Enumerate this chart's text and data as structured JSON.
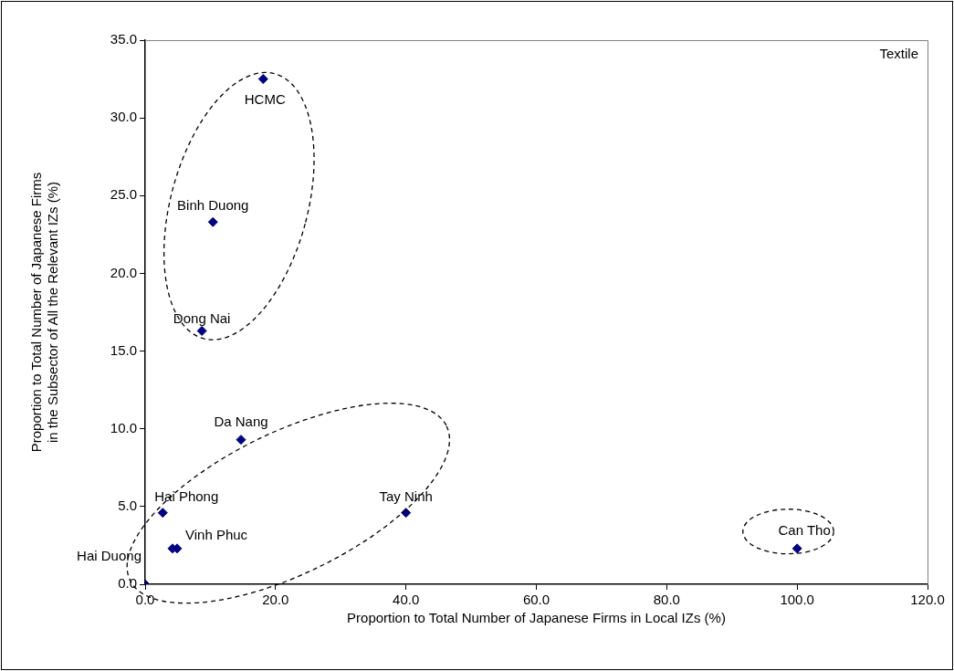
{
  "chart_data": {
    "type": "scatter",
    "title": "Textile",
    "xlabel": "Proportion to Total Number of Japanese Firms in Local IZs (%)",
    "ylabel": "Proportion to Total Number of Japanese Firms in the Subsector of All the Relevant IZs (%)",
    "x": [
      18.1,
      10.4,
      8.7,
      14.7,
      2.7,
      4.2,
      4.9,
      0,
      40,
      100
    ],
    "series": [
      {
        "color": "#000080",
        "values": [
          32.5,
          23.3,
          16.3,
          9.3,
          4.6,
          2.3,
          2.3,
          0,
          4.6,
          2.3
        ]
      }
    ],
    "marker": "diamond",
    "grid": false,
    "legend": false,
    "xlim": [
      0,
      120
    ],
    "xticks": [
      {
        "value": 0,
        "label": "0.0"
      },
      {
        "value": 20,
        "label": "20.0"
      },
      {
        "value": 40,
        "label": "40.0"
      },
      {
        "value": 60,
        "label": "60.0"
      },
      {
        "value": 80,
        "label": "80.0"
      },
      {
        "value": 100,
        "label": "100.0"
      },
      {
        "value": 120,
        "label": "120.0"
      }
    ],
    "ylim": [
      0,
      35
    ],
    "yticks": [
      {
        "value": 0,
        "label": "0.0"
      },
      {
        "value": 5,
        "label": "5.0"
      },
      {
        "value": 10,
        "label": "10.0"
      },
      {
        "value": 15,
        "label": "15.0"
      },
      {
        "value": 20,
        "label": "20.0"
      },
      {
        "value": 25,
        "label": "25.0"
      },
      {
        "value": 30,
        "label": "30.0"
      },
      {
        "value": 35,
        "label": "35.0"
      }
    ],
    "annotations": [
      {
        "text": "HCMC",
        "x": 18.1,
        "y": 32.5
      },
      {
        "text": "Binh Duong",
        "x": 10.4,
        "y": 23.3
      },
      {
        "text": "Dong Nai",
        "x": 8.7,
        "y": 16.3
      },
      {
        "text": "Da Nang",
        "x": 14.7,
        "y": 9.3
      },
      {
        "text": "Hai Phong",
        "x": 2.7,
        "y": 4.6
      },
      {
        "text": "Vinh Phuc",
        "x": 4.9,
        "y": 2.3
      },
      {
        "text": "Hai Duong",
        "x": 0,
        "y": 0
      },
      {
        "text": "Tay Ninh",
        "x": 40,
        "y": 4.6
      },
      {
        "text": "Can Tho",
        "x": 100,
        "y": 2.3
      }
    ]
  }
}
